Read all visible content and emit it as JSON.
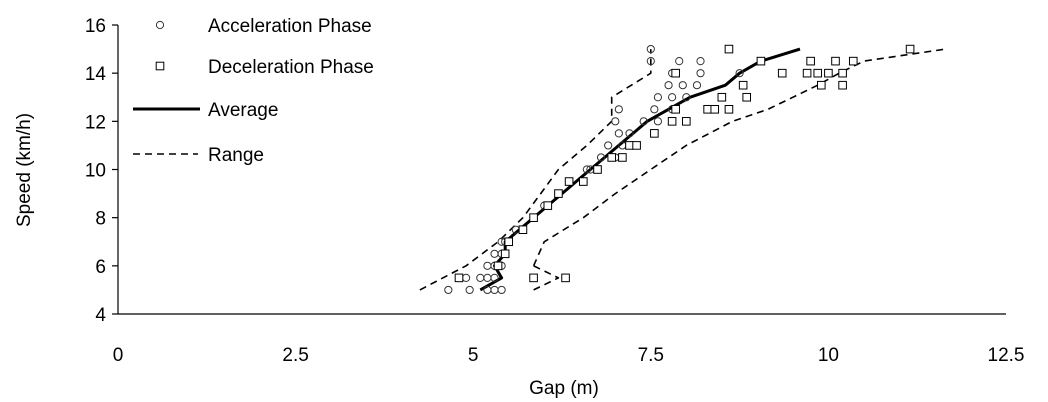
{
  "chart_data": {
    "type": "scatter",
    "xlabel": "Gap (m)",
    "ylabel": "Speed (km/h)",
    "xlim": [
      0,
      12.5
    ],
    "ylim": [
      4,
      16
    ],
    "x_ticks": [
      "0",
      "2.5",
      "5",
      "7.5",
      "10",
      "12.5"
    ],
    "y_ticks": [
      "4",
      "6",
      "8",
      "10",
      "12",
      "14",
      "16"
    ],
    "grid": false,
    "legend_position": "top-left",
    "series": [
      {
        "name": "Acceleration Phase",
        "kind": "scatter",
        "marker": "circle",
        "points": [
          [
            4.65,
            5.0
          ],
          [
            4.95,
            5.0
          ],
          [
            5.2,
            5.0
          ],
          [
            5.3,
            5.0
          ],
          [
            5.4,
            5.0
          ],
          [
            4.9,
            5.5
          ],
          [
            5.1,
            5.5
          ],
          [
            5.2,
            5.5
          ],
          [
            5.3,
            5.5
          ],
          [
            6.3,
            5.5
          ],
          [
            5.2,
            6.0
          ],
          [
            5.3,
            6.0
          ],
          [
            5.4,
            6.0
          ],
          [
            5.3,
            6.5
          ],
          [
            5.4,
            6.5
          ],
          [
            5.45,
            7.0
          ],
          [
            5.4,
            7.0
          ],
          [
            5.6,
            7.5
          ],
          [
            5.85,
            8.0
          ],
          [
            6.0,
            8.5
          ],
          [
            6.2,
            9.0
          ],
          [
            6.35,
            9.5
          ],
          [
            6.6,
            10.0
          ],
          [
            6.65,
            10.0
          ],
          [
            6.8,
            10.5
          ],
          [
            7.0,
            10.5
          ],
          [
            6.9,
            11.0
          ],
          [
            7.1,
            11.0
          ],
          [
            7.05,
            11.5
          ],
          [
            7.2,
            11.5
          ],
          [
            7.0,
            12.0
          ],
          [
            7.4,
            12.0
          ],
          [
            7.6,
            12.0
          ],
          [
            7.05,
            12.5
          ],
          [
            7.55,
            12.5
          ],
          [
            7.8,
            12.5
          ],
          [
            7.6,
            13.0
          ],
          [
            7.8,
            13.0
          ],
          [
            8.0,
            13.0
          ],
          [
            7.75,
            13.5
          ],
          [
            7.95,
            13.5
          ],
          [
            8.15,
            13.5
          ],
          [
            7.8,
            14.0
          ],
          [
            8.2,
            14.0
          ],
          [
            8.75,
            14.0
          ],
          [
            7.5,
            14.5
          ],
          [
            7.9,
            14.5
          ],
          [
            8.2,
            14.5
          ],
          [
            7.5,
            15.0
          ]
        ]
      },
      {
        "name": "Deceleration Phase",
        "kind": "scatter",
        "marker": "square",
        "points": [
          [
            4.8,
            5.5
          ],
          [
            5.85,
            5.5
          ],
          [
            6.3,
            5.5
          ],
          [
            5.35,
            6.0
          ],
          [
            5.45,
            6.5
          ],
          [
            5.5,
            7.0
          ],
          [
            5.7,
            7.5
          ],
          [
            5.85,
            8.0
          ],
          [
            6.05,
            8.5
          ],
          [
            6.2,
            9.0
          ],
          [
            6.35,
            9.5
          ],
          [
            6.55,
            9.5
          ],
          [
            6.75,
            10.0
          ],
          [
            6.95,
            10.5
          ],
          [
            7.1,
            10.5
          ],
          [
            7.2,
            11.0
          ],
          [
            7.3,
            11.0
          ],
          [
            7.55,
            11.5
          ],
          [
            7.8,
            12.0
          ],
          [
            8.0,
            12.0
          ],
          [
            7.85,
            12.5
          ],
          [
            8.3,
            12.5
          ],
          [
            8.4,
            12.5
          ],
          [
            8.6,
            12.5
          ],
          [
            8.5,
            13.0
          ],
          [
            8.85,
            13.0
          ],
          [
            8.8,
            13.5
          ],
          [
            9.9,
            13.5
          ],
          [
            10.2,
            13.5
          ],
          [
            7.85,
            14.0
          ],
          [
            9.35,
            14.0
          ],
          [
            9.7,
            14.0
          ],
          [
            9.85,
            14.0
          ],
          [
            10.0,
            14.0
          ],
          [
            10.2,
            14.0
          ],
          [
            9.05,
            14.5
          ],
          [
            9.75,
            14.5
          ],
          [
            10.1,
            14.5
          ],
          [
            10.35,
            14.5
          ],
          [
            8.6,
            15.0
          ],
          [
            11.15,
            15.0
          ]
        ]
      },
      {
        "name": "Average",
        "kind": "line",
        "dash": "solid",
        "points": [
          [
            5.1,
            5.0
          ],
          [
            5.4,
            5.5
          ],
          [
            5.3,
            6.0
          ],
          [
            5.45,
            6.5
          ],
          [
            5.45,
            7.0
          ],
          [
            5.65,
            7.5
          ],
          [
            5.85,
            8.0
          ],
          [
            6.05,
            8.5
          ],
          [
            6.25,
            9.0
          ],
          [
            6.45,
            9.5
          ],
          [
            6.65,
            10.0
          ],
          [
            6.85,
            10.5
          ],
          [
            7.05,
            11.0
          ],
          [
            7.25,
            11.5
          ],
          [
            7.45,
            12.0
          ],
          [
            7.75,
            12.5
          ],
          [
            8.05,
            13.0
          ],
          [
            8.55,
            13.5
          ],
          [
            8.75,
            14.0
          ],
          [
            9.05,
            14.5
          ],
          [
            9.6,
            15.0
          ]
        ]
      },
      {
        "name": "Range",
        "kind": "line",
        "dash": "dashed",
        "segments": [
          [
            [
              4.25,
              5.0
            ],
            [
              4.9,
              6.0
            ],
            [
              5.35,
              7.0
            ],
            [
              5.7,
              8.0
            ],
            [
              5.95,
              9.0
            ],
            [
              6.2,
              10.0
            ],
            [
              6.6,
              11.0
            ],
            [
              6.95,
              12.0
            ],
            [
              6.95,
              13.0
            ],
            [
              7.5,
              14.0
            ],
            [
              7.5,
              15.0
            ]
          ],
          [
            [
              5.85,
              6.0
            ],
            [
              6.0,
              7.0
            ],
            [
              6.55,
              8.0
            ],
            [
              7.0,
              9.0
            ],
            [
              7.5,
              10.0
            ],
            [
              8.0,
              11.0
            ],
            [
              8.65,
              12.0
            ],
            [
              9.15,
              12.5
            ],
            [
              9.85,
              13.5
            ],
            [
              10.15,
              14.0
            ],
            [
              10.5,
              14.5
            ],
            [
              11.65,
              15.0
            ]
          ],
          [
            [
              5.85,
              5.0
            ],
            [
              6.2,
              5.5
            ],
            [
              5.85,
              6.0
            ]
          ]
        ]
      }
    ]
  }
}
